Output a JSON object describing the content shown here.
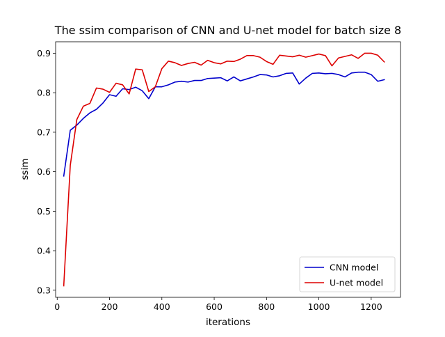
{
  "chart_data": {
    "type": "line",
    "title": "The ssim comparison of CNN and U-net model for batch size 8",
    "xlabel": "iterations",
    "ylabel": "ssim",
    "xlim": [
      -6,
      1312
    ],
    "ylim": [
      0.282,
      0.929
    ],
    "xticks": [
      0,
      200,
      400,
      600,
      800,
      1000,
      1200
    ],
    "yticks": [
      0.3,
      0.4,
      0.5,
      0.6,
      0.7,
      0.8,
      0.9
    ],
    "xtick_labels": [
      "0",
      "200",
      "400",
      "600",
      "800",
      "1000",
      "1200"
    ],
    "ytick_labels": [
      "0.3",
      "0.4",
      "0.5",
      "0.6",
      "0.7",
      "0.8",
      "0.9"
    ],
    "grid": false,
    "legend_position": "lower-right",
    "x": [
      25,
      50,
      75,
      100,
      125,
      150,
      175,
      200,
      225,
      250,
      275,
      300,
      325,
      350,
      375,
      400,
      425,
      450,
      475,
      500,
      525,
      550,
      575,
      600,
      625,
      650,
      675,
      700,
      725,
      750,
      775,
      800,
      825,
      850,
      875,
      900,
      925,
      950,
      975,
      1000,
      1025,
      1050,
      1075,
      1100,
      1125,
      1150,
      1175,
      1200,
      1225,
      1250
    ],
    "series": [
      {
        "name": "CNN model",
        "color": "#0000cc",
        "values": [
          0.589,
          0.705,
          0.718,
          0.735,
          0.749,
          0.758,
          0.774,
          0.795,
          0.791,
          0.81,
          0.808,
          0.814,
          0.805,
          0.785,
          0.815,
          0.815,
          0.82,
          0.827,
          0.829,
          0.827,
          0.831,
          0.831,
          0.836,
          0.837,
          0.838,
          0.83,
          0.84,
          0.83,
          0.835,
          0.84,
          0.846,
          0.845,
          0.84,
          0.843,
          0.849,
          0.85,
          0.822,
          0.837,
          0.849,
          0.85,
          0.848,
          0.849,
          0.846,
          0.84,
          0.85,
          0.852,
          0.852,
          0.846,
          0.829,
          0.833
        ]
      },
      {
        "name": "U-net model",
        "color": "#dd0000",
        "values": [
          0.311,
          0.616,
          0.732,
          0.766,
          0.773,
          0.812,
          0.809,
          0.801,
          0.824,
          0.82,
          0.797,
          0.86,
          0.858,
          0.803,
          0.815,
          0.861,
          0.88,
          0.876,
          0.869,
          0.874,
          0.877,
          0.87,
          0.882,
          0.876,
          0.873,
          0.88,
          0.879,
          0.885,
          0.894,
          0.894,
          0.89,
          0.879,
          0.872,
          0.895,
          0.893,
          0.891,
          0.895,
          0.89,
          0.894,
          0.898,
          0.894,
          0.868,
          0.888,
          0.892,
          0.896,
          0.887,
          0.9,
          0.9,
          0.895,
          0.878
        ]
      }
    ]
  }
}
